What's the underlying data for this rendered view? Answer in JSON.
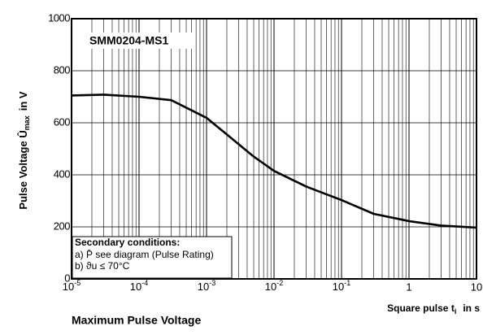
{
  "chart_data": {
    "type": "line",
    "title": "Maximum Pulse Voltage",
    "ylabel": "Pulse Voltage Û",
    "ylabel_sub": "max",
    "ylabel_unit": "in V",
    "xlabel": "Square pulse t",
    "xlabel_sub": "i",
    "xlabel_unit": "in s",
    "annotations": [
      "SMM0204-MS1",
      "Secondary conditions:",
      "a) P̄  see diagram (Pulse Rating)",
      "b)  ϑu ≤ 70°C"
    ],
    "x": [
      1e-05,
      3e-05,
      0.0001,
      0.0003,
      0.001,
      0.002,
      0.005,
      0.01,
      0.03,
      0.1,
      0.3,
      1,
      3,
      10
    ],
    "series": [
      {
        "name": "SMM0204-MS1",
        "color": "#000000",
        "values": [
          705,
          708,
          700,
          687,
          619,
          555,
          470,
          415,
          355,
          303,
          250,
          222,
          205,
          197
        ]
      }
    ],
    "xscale": "log",
    "grid": true,
    "xlim": [
      1e-05,
      10
    ],
    "xticks": [
      {
        "value": 1e-05,
        "label": "10",
        "exponent": "-5"
      },
      {
        "value": 0.0001,
        "label": "10",
        "exponent": "-4"
      },
      {
        "value": 0.001,
        "label": "10",
        "exponent": "-3"
      },
      {
        "value": 0.01,
        "label": "10",
        "exponent": "-2"
      },
      {
        "value": 0.1,
        "label": "10",
        "exponent": "-1"
      },
      1,
      10
    ],
    "ylim": [
      0,
      1000
    ],
    "yticks": [
      0,
      200,
      400,
      600,
      800,
      1000
    ]
  }
}
